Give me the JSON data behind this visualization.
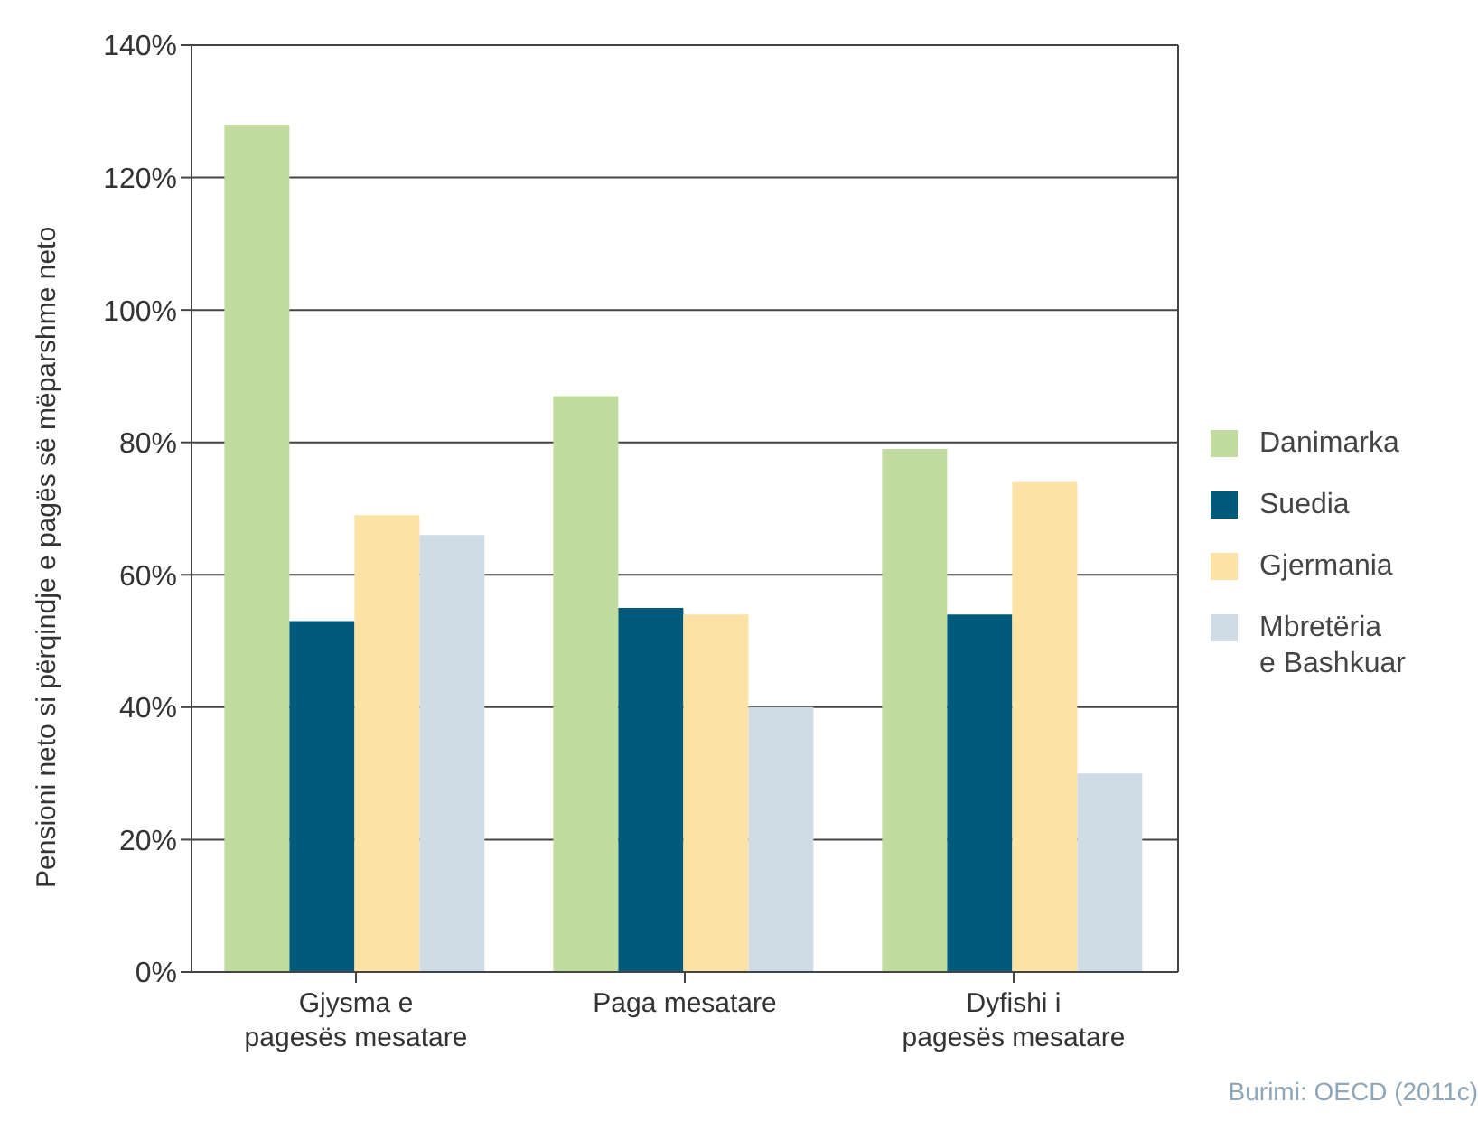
{
  "chart_data": {
    "type": "bar",
    "ylabel": "Pensioni neto si përqindje e pagës së mëparshme neto",
    "categories": [
      "Gjysma e\npagesës mesatare",
      "Paga mesatare",
      "Dyfishi i\npagesës mesatare"
    ],
    "series": [
      {
        "name": "Danimarka",
        "color": "#c2dca0",
        "values": [
          128,
          87,
          79
        ]
      },
      {
        "name": "Suedia",
        "color": "#005a7a",
        "values": [
          53,
          55,
          54
        ]
      },
      {
        "name": "Gjermania",
        "color": "#fde2a6",
        "values": [
          69,
          54,
          74
        ]
      },
      {
        "name": "Mbretëria\ne Bashkuar",
        "color": "#cfdbe5",
        "values": [
          66,
          40,
          30
        ]
      }
    ],
    "ylim": [
      0,
      140
    ],
    "yticks": [
      {
        "value": 0,
        "label": "0%"
      },
      {
        "value": 20,
        "label": "20%"
      },
      {
        "value": 40,
        "label": "40%"
      },
      {
        "value": 60,
        "label": "60%"
      },
      {
        "value": 80,
        "label": "80%"
      },
      {
        "value": 100,
        "label": "100%"
      },
      {
        "value": 120,
        "label": "120%"
      },
      {
        "value": 140,
        "label": "140%"
      }
    ],
    "grid": "y",
    "legend": "right",
    "annotations": [
      "Burimi: OECD (2011c)"
    ]
  }
}
